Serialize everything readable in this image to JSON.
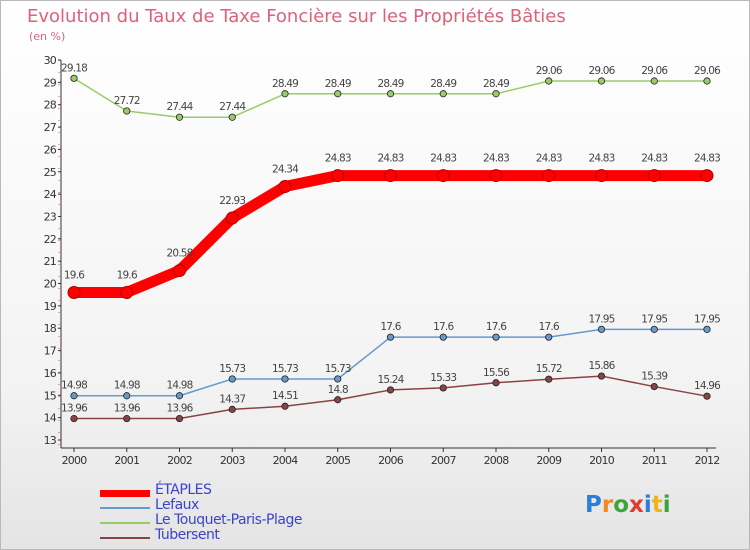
{
  "title": "Evolution du Taux de Taxe Foncière sur les Propriétés Bâties",
  "subtitle": "(en %)",
  "logo": {
    "letters": [
      "P",
      "r",
      "o",
      "x",
      "i",
      "t",
      "i"
    ],
    "colors": [
      "#2a7fd8",
      "#f28a1e",
      "#3fa33b",
      "#e23b2e",
      "#2a7fd8",
      "#f2b21e",
      "#3fa33b"
    ]
  },
  "chart_data": {
    "type": "line",
    "title": "Evolution du Taux de Taxe Foncière sur les Propriétés Bâties",
    "subtitle": "(en %)",
    "xlabel": "",
    "ylabel": "",
    "x": [
      "2000",
      "2001",
      "2002",
      "2003",
      "2004",
      "2005",
      "2006",
      "2007",
      "2008",
      "2009",
      "2010",
      "2011",
      "2012"
    ],
    "ylim": [
      13,
      30
    ],
    "yticks": [
      "13",
      "14",
      "15",
      "16",
      "17",
      "18",
      "19",
      "20",
      "21",
      "22",
      "23",
      "24",
      "25",
      "26",
      "27",
      "28",
      "29",
      "30"
    ],
    "grid": false,
    "legend_position": "bottom-left",
    "series": [
      {
        "name": "ÉTAPLES",
        "color": "#ff0000",
        "values": [
          19.6,
          19.6,
          20.58,
          22.93,
          24.34,
          24.83,
          24.83,
          24.83,
          24.83,
          24.83,
          24.83,
          24.83,
          24.83
        ],
        "labels": [
          "19.6",
          "19.6",
          "20.58",
          "22.93",
          "24.34",
          "24.83",
          "24.83",
          "24.83",
          "24.83",
          "24.83",
          "24.83",
          "24.83",
          "24.83"
        ]
      },
      {
        "name": "Lefaux",
        "color": "#6699cc",
        "values": [
          14.98,
          14.98,
          14.98,
          15.73,
          15.73,
          15.73,
          17.6,
          17.6,
          17.6,
          17.6,
          17.95,
          17.95,
          17.95
        ],
        "labels": [
          "14.98",
          "14.98",
          "14.98",
          "15.73",
          "15.73",
          "15.73",
          "17.6",
          "17.6",
          "17.6",
          "17.6",
          "17.95",
          "17.95",
          "17.95"
        ]
      },
      {
        "name": "Le Touquet-Paris-Plage",
        "color": "#99cc66",
        "values": [
          29.18,
          27.72,
          27.44,
          27.44,
          28.49,
          28.49,
          28.49,
          28.49,
          28.49,
          29.06,
          29.06,
          29.06,
          29.06
        ],
        "labels": [
          "29.18",
          "27.72",
          "27.44",
          "27.44",
          "28.49",
          "28.49",
          "28.49",
          "28.49",
          "28.49",
          "29.06",
          "29.06",
          "29.06",
          "29.06"
        ]
      },
      {
        "name": "Tubersent",
        "color": "#884444",
        "values": [
          13.96,
          13.96,
          13.96,
          14.37,
          14.51,
          14.8,
          15.24,
          15.33,
          15.56,
          15.72,
          15.86,
          15.39,
          14.96
        ],
        "labels": [
          "13.96",
          "13.96",
          "13.96",
          "14.37",
          "14.51",
          "14.8",
          "15.24",
          "15.33",
          "15.56",
          "15.72",
          "15.86",
          "15.39",
          "14.96"
        ]
      }
    ]
  },
  "legend": [
    {
      "label": "ÉTAPLES",
      "color": "#ff0000"
    },
    {
      "label": "Lefaux",
      "color": "#6699cc"
    },
    {
      "label": "Le Touquet-Paris-Plage",
      "color": "#99cc66"
    },
    {
      "label": "Tubersent",
      "color": "#884444"
    }
  ]
}
